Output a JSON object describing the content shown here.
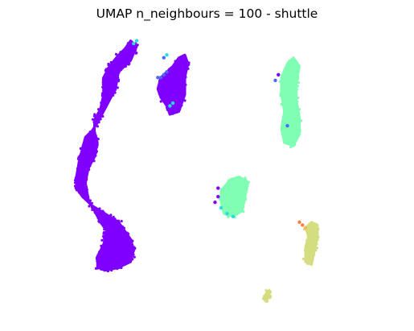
{
  "chart_data": {
    "type": "scatter",
    "title": "UMAP n_neighbours = 100 - shuttle",
    "xlabel": "",
    "ylabel": "",
    "axes_visible": false,
    "grid": false,
    "legend": "none",
    "colormap": "rainbow",
    "xlim": [
      0,
      100
    ],
    "ylim": [
      0,
      100
    ],
    "clusters": [
      {
        "id": "left-arc",
        "color": "#7f00ff",
        "points": 1400,
        "outline": [
          [
            13,
            84
          ],
          [
            15,
            88
          ],
          [
            18,
            92
          ],
          [
            20,
            94
          ],
          [
            22,
            97
          ],
          [
            24,
            95
          ],
          [
            22,
            90
          ],
          [
            18,
            86
          ],
          [
            17,
            80
          ],
          [
            15,
            76
          ],
          [
            13,
            72
          ],
          [
            11,
            68
          ],
          [
            9,
            65
          ],
          [
            7,
            63
          ],
          [
            6,
            59
          ],
          [
            5,
            55
          ],
          [
            4,
            49
          ],
          [
            4,
            45
          ],
          [
            6,
            42
          ],
          [
            9,
            39
          ],
          [
            12,
            37
          ],
          [
            15,
            35
          ],
          [
            18,
            33
          ],
          [
            20,
            30
          ],
          [
            22,
            27
          ],
          [
            23,
            23
          ],
          [
            22,
            19
          ],
          [
            18,
            17
          ],
          [
            14,
            16
          ],
          [
            11,
            17
          ],
          [
            11,
            21
          ],
          [
            13,
            25
          ],
          [
            14,
            30
          ],
          [
            12,
            33
          ],
          [
            10,
            37
          ],
          [
            8,
            41
          ],
          [
            7,
            47
          ],
          [
            8,
            52
          ],
          [
            10,
            56
          ],
          [
            11,
            61
          ],
          [
            10,
            65
          ],
          [
            10,
            69
          ],
          [
            12,
            73
          ],
          [
            13,
            78
          ]
        ]
      },
      {
        "id": "top-middle",
        "color": "#7f00ff",
        "points": 300,
        "outline": [
          [
            34,
            86
          ],
          [
            36,
            88
          ],
          [
            38,
            91
          ],
          [
            40,
            92
          ],
          [
            41,
            89
          ],
          [
            40,
            84
          ],
          [
            40,
            78
          ],
          [
            38,
            72
          ],
          [
            35,
            71
          ],
          [
            34,
            74
          ],
          [
            32,
            77
          ],
          [
            31,
            80
          ],
          [
            32,
            84
          ]
        ]
      },
      {
        "id": "right-upper",
        "color": "#80ffb4",
        "points": 260,
        "outline": [
          [
            72,
            84
          ],
          [
            74,
            89
          ],
          [
            76,
            91
          ],
          [
            78,
            88
          ],
          [
            77,
            82
          ],
          [
            77,
            76
          ],
          [
            78,
            70
          ],
          [
            78,
            64
          ],
          [
            76,
            60
          ],
          [
            73,
            61
          ],
          [
            72,
            66
          ],
          [
            73,
            72
          ],
          [
            72,
            78
          ]
        ]
      },
      {
        "id": "center-lower",
        "color": "#80ffb4",
        "points": 160,
        "outline": [
          [
            52,
            44
          ],
          [
            55,
            48
          ],
          [
            58,
            49
          ],
          [
            61,
            47
          ],
          [
            60,
            42
          ],
          [
            59,
            37
          ],
          [
            56,
            35
          ],
          [
            53,
            36
          ],
          [
            52,
            40
          ]
        ]
      },
      {
        "id": "right-lower",
        "color": "#d4dd80",
        "points": 110,
        "outline": [
          [
            80,
            31
          ],
          [
            82,
            33
          ],
          [
            84,
            32
          ],
          [
            84,
            28
          ],
          [
            83,
            23
          ],
          [
            82,
            18
          ],
          [
            80,
            19
          ],
          [
            80,
            24
          ],
          [
            81,
            28
          ]
        ]
      },
      {
        "id": "bottom-small",
        "color": "#d4dd80",
        "points": 18,
        "outline": [
          [
            67,
            8
          ],
          [
            68,
            9
          ],
          [
            68,
            7
          ],
          [
            67,
            5
          ],
          [
            66,
            6
          ]
        ]
      }
    ],
    "outliers": [
      {
        "x": 24,
        "y": 97,
        "color": "#2adddd"
      },
      {
        "x": 23,
        "y": 96,
        "color": "#2adddd"
      },
      {
        "x": 34,
        "y": 86,
        "color": "#4a6cf4"
      },
      {
        "x": 33,
        "y": 85,
        "color": "#4a6cf4"
      },
      {
        "x": 32,
        "y": 84,
        "color": "#4a6cf4"
      },
      {
        "x": 31,
        "y": 84,
        "color": "#4a6cf4"
      },
      {
        "x": 33,
        "y": 91,
        "color": "#4a6cf4"
      },
      {
        "x": 34,
        "y": 92,
        "color": "#2adddd"
      },
      {
        "x": 36,
        "y": 75,
        "color": "#2adddd"
      },
      {
        "x": 35,
        "y": 74,
        "color": "#2adddd"
      },
      {
        "x": 71,
        "y": 85,
        "color": "#7f00ff"
      },
      {
        "x": 70,
        "y": 83,
        "color": "#4a6cf4"
      },
      {
        "x": 74,
        "y": 67,
        "color": "#4a6cf4"
      },
      {
        "x": 51,
        "y": 45,
        "color": "#7f00ff"
      },
      {
        "x": 51,
        "y": 42,
        "color": "#7f00ff"
      },
      {
        "x": 50,
        "y": 40,
        "color": "#7f00ff"
      },
      {
        "x": 52,
        "y": 38,
        "color": "#2adddd"
      },
      {
        "x": 54,
        "y": 36,
        "color": "#2adddd"
      },
      {
        "x": 56,
        "y": 35,
        "color": "#2adddd"
      },
      {
        "x": 78,
        "y": 33,
        "color": "#ff7f40"
      },
      {
        "x": 79,
        "y": 32,
        "color": "#ff7f40"
      },
      {
        "x": 80,
        "y": 31,
        "color": "#ffb360"
      },
      {
        "x": 18,
        "y": 22,
        "color": "#7f00ff"
      },
      {
        "x": 23,
        "y": 24,
        "color": "#7f00ff"
      }
    ]
  }
}
